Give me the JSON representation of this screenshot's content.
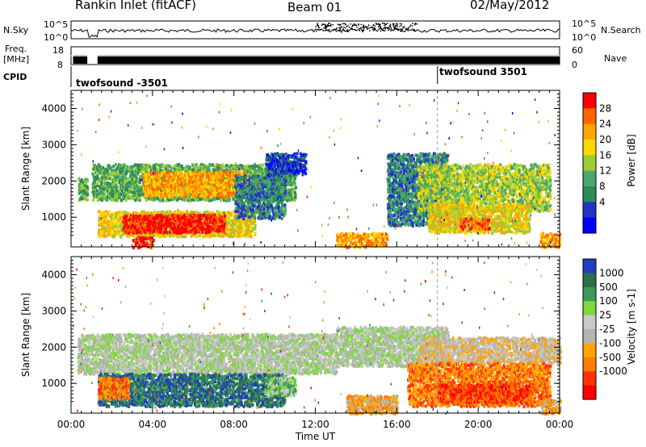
{
  "header": {
    "title": "Rankin Inlet (fitACF)",
    "beam": "Beam 01",
    "date": "02/May/2012"
  },
  "side_labels": {
    "nsky": "N.Sky",
    "freq": "Freq.",
    "freq_unit": "[MHz]",
    "cpid": "CPID",
    "nsearch": "N.Search",
    "nave": "Nave"
  },
  "noise_axis": {
    "left_ticks": [
      "10^5",
      "10^0"
    ],
    "right_ticks": [
      "10^5",
      "10^0"
    ]
  },
  "freq_axis": {
    "left_ticks": [
      "18",
      "8"
    ],
    "right_ticks": [
      "60",
      "0"
    ]
  },
  "cpid_labels": [
    {
      "text": "twofsound -3501",
      "time_h": 0.0
    },
    {
      "text": "twofsound 3501",
      "time_h": 18.0
    }
  ],
  "colors": {
    "power": [
      "#0000ff",
      "#2233cc",
      "#2e8b57",
      "#4aa86a",
      "#9acd32",
      "#ffd700",
      "#ffa500",
      "#ff6600",
      "#ff0000"
    ],
    "velocity": [
      "#1f3fbf",
      "#2d6e4e",
      "#3a9a5a",
      "#7fd83a",
      "#c8c8c8",
      "#b4b4b4",
      "#ffa500",
      "#ff7f00",
      "#ff3300",
      "#ff0000"
    ]
  },
  "chart_data": [
    {
      "type": "heatmap",
      "panel": "power",
      "ylabel": "Slant Range [km]",
      "ylim": [
        180,
        4500
      ],
      "yticks": [
        "1000",
        "2000",
        "3000",
        "4000"
      ],
      "xlim": [
        0,
        24
      ],
      "colorbar_label": "Power [dB]",
      "colorbar_ticks": [
        "4",
        "8",
        "12",
        "16",
        "20",
        "24",
        "28"
      ],
      "regions": [
        {
          "t0": 0.3,
          "t1": 0.8,
          "r0": 1500,
          "r1": 2100,
          "level": 3
        },
        {
          "t0": 1.0,
          "t1": 11.0,
          "r0": 1500,
          "r1": 2500,
          "level": 3
        },
        {
          "t0": 3.5,
          "t1": 8.5,
          "r0": 1600,
          "r1": 2300,
          "level": 6
        },
        {
          "t0": 1.3,
          "t1": 9.0,
          "r0": 500,
          "r1": 1200,
          "level": 5
        },
        {
          "t0": 2.5,
          "t1": 7.5,
          "r0": 600,
          "r1": 1100,
          "level": 8
        },
        {
          "t0": 3.0,
          "t1": 4.0,
          "r0": 200,
          "r1": 500,
          "level": 8
        },
        {
          "t0": 8.0,
          "t1": 10.5,
          "r0": 1000,
          "r1": 2200,
          "level": 2
        },
        {
          "t0": 9.5,
          "t1": 11.5,
          "r0": 2200,
          "r1": 2800,
          "level": 1
        },
        {
          "t0": 13.0,
          "t1": 15.5,
          "r0": 200,
          "r1": 600,
          "level": 6
        },
        {
          "t0": 15.5,
          "t1": 18.5,
          "r0": 800,
          "r1": 2800,
          "level": 2
        },
        {
          "t0": 17.0,
          "t1": 23.5,
          "r0": 1200,
          "r1": 2500,
          "level": 4
        },
        {
          "t0": 17.5,
          "t1": 22.5,
          "r0": 600,
          "r1": 1400,
          "level": 5
        },
        {
          "t0": 19.0,
          "t1": 20.5,
          "r0": 700,
          "r1": 1000,
          "level": 7
        },
        {
          "t0": 23.0,
          "t1": 24.0,
          "r0": 200,
          "r1": 600,
          "level": 6
        }
      ]
    },
    {
      "type": "heatmap",
      "panel": "velocity",
      "ylabel": "Slant Range [km]",
      "xlabel": "Time UT",
      "ylim": [
        180,
        4500
      ],
      "yticks": [
        "1000",
        "2000",
        "3000",
        "4000"
      ],
      "xlim": [
        0,
        24
      ],
      "xticks": [
        "00:00",
        "04:00",
        "08:00",
        "12:00",
        "16:00",
        "20:00",
        "00:00"
      ],
      "colorbar_label": "Velocity [m s-1]",
      "colorbar_ticks": [
        "1000",
        "500",
        "100",
        "25",
        "-25",
        "-100",
        "-500",
        "-1000"
      ],
      "regions": [
        {
          "t0": 0.3,
          "t1": 13.0,
          "r0": 1300,
          "r1": 2400,
          "level": 4
        },
        {
          "t0": 13.0,
          "t1": 18.5,
          "r0": 1500,
          "r1": 2600,
          "level": 4
        },
        {
          "t0": 17.0,
          "t1": 24.0,
          "r0": 1600,
          "r1": 2300,
          "level": 5
        },
        {
          "t0": 1.3,
          "t1": 10.5,
          "r0": 400,
          "r1": 1300,
          "level": 1
        },
        {
          "t0": 1.3,
          "t1": 2.8,
          "r0": 600,
          "r1": 1200,
          "level": 7
        },
        {
          "t0": 9.5,
          "t1": 11.0,
          "r0": 700,
          "r1": 1200,
          "level": 3
        },
        {
          "t0": 13.5,
          "t1": 16.0,
          "r0": 200,
          "r1": 700,
          "level": 6
        },
        {
          "t0": 16.5,
          "t1": 23.5,
          "r0": 400,
          "r1": 1600,
          "level": 7
        },
        {
          "t0": 18.0,
          "t1": 22.5,
          "r0": 500,
          "r1": 1000,
          "level": 8
        },
        {
          "t0": 23.0,
          "t1": 24.0,
          "r0": 200,
          "r1": 600,
          "level": 6
        }
      ]
    }
  ]
}
